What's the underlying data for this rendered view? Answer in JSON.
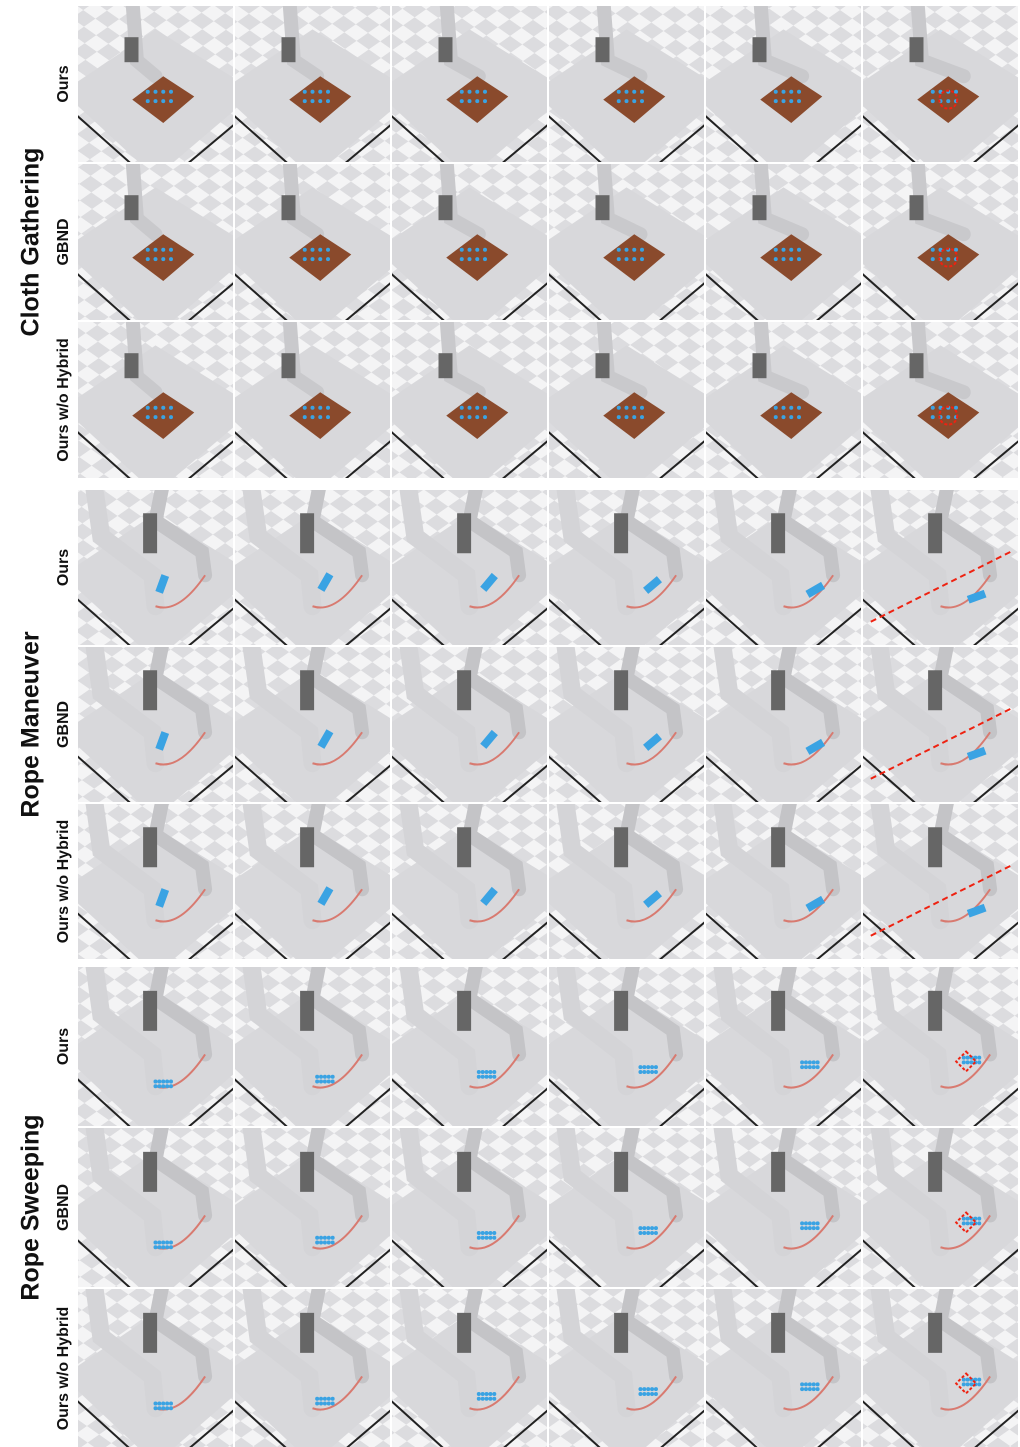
{
  "groups": [
    {
      "label": "Cloth Gathering",
      "rows": [
        "Ours",
        "GBND",
        "Ours w/o Hybrid"
      ]
    },
    {
      "label": "Rope Maneuver",
      "rows": [
        "Ours",
        "GBND",
        "Ours w/o Hybrid"
      ]
    },
    {
      "label": "Rope Sweeping",
      "rows": [
        "Ours",
        "GBND",
        "Ours w/o Hybrid"
      ]
    }
  ]
}
